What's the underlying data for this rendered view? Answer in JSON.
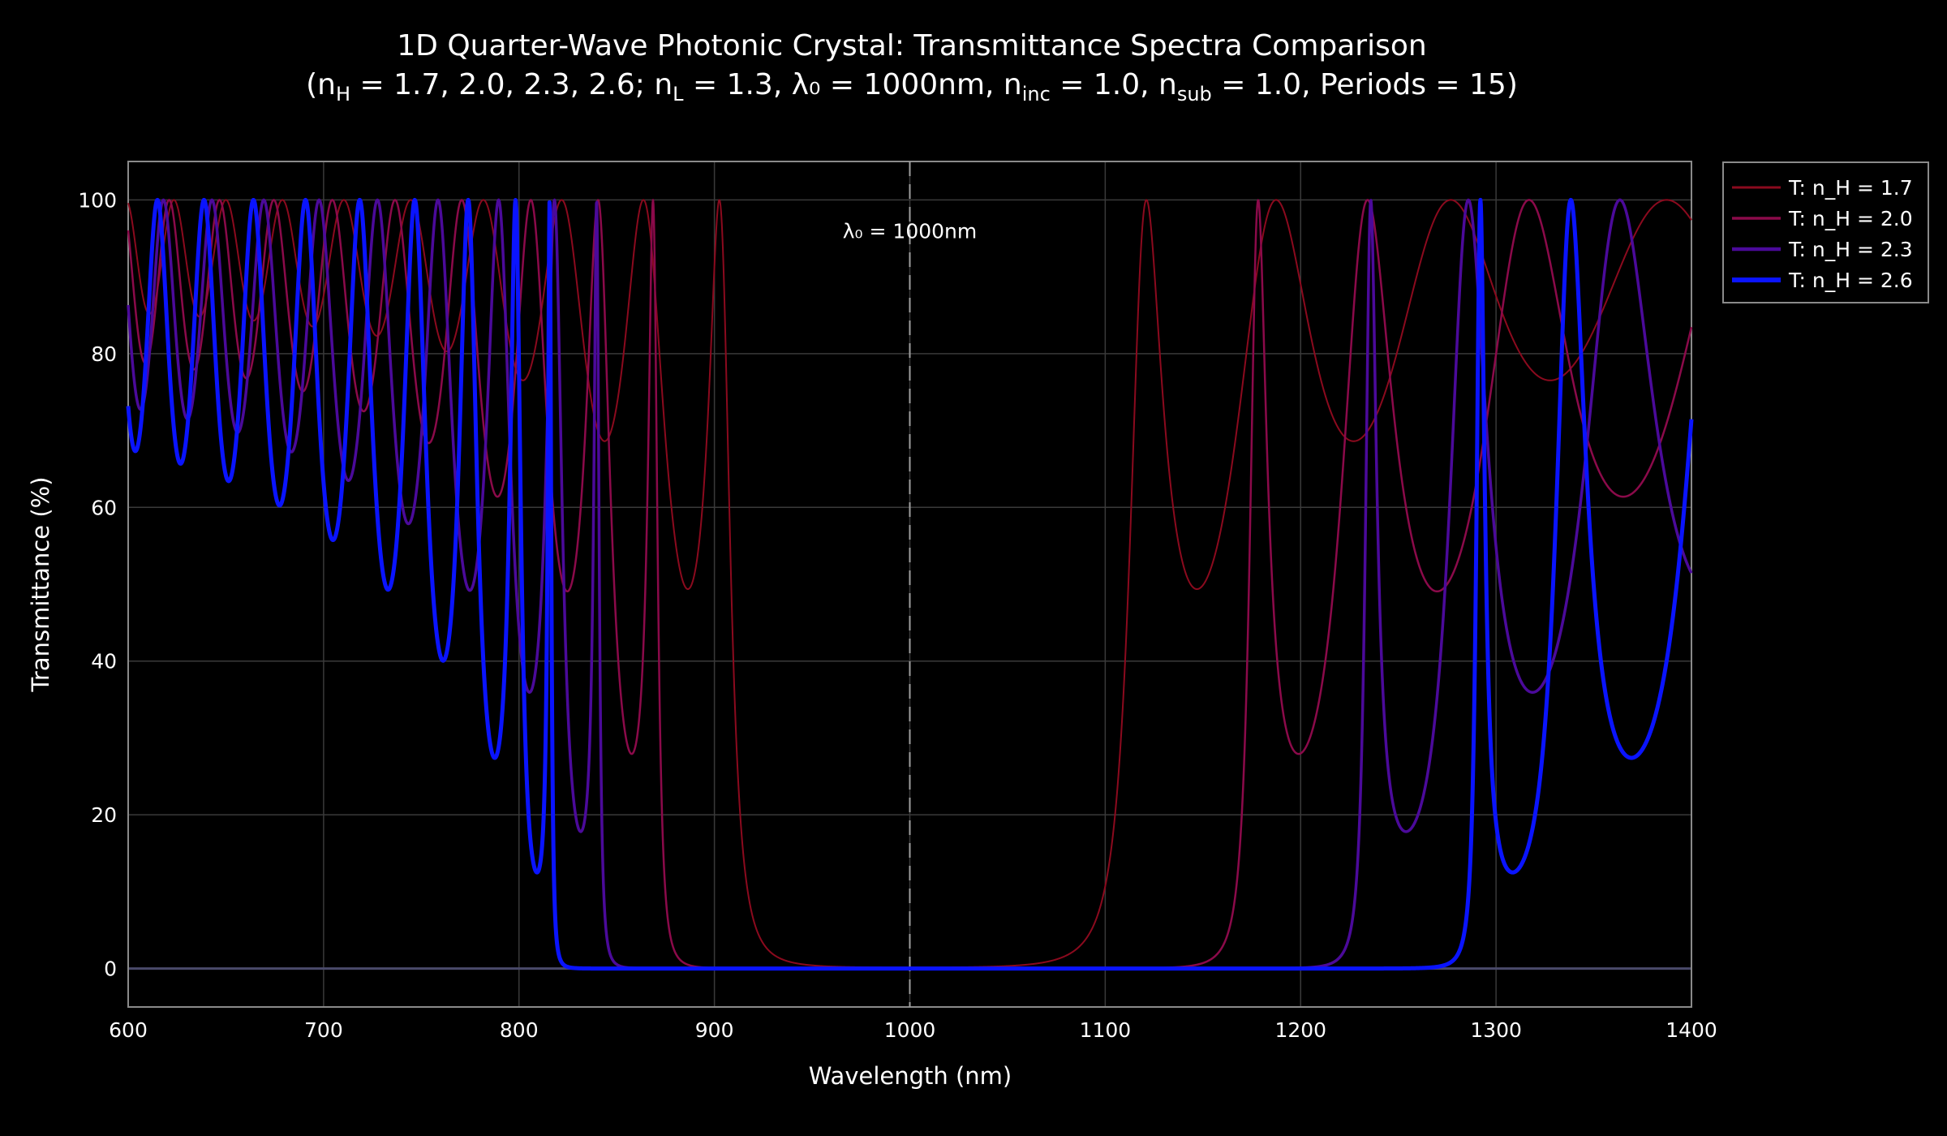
{
  "chart_data": {
    "type": "line",
    "title": "1D Quarter-Wave Photonic Crystal: Transmittance Spectra Comparison",
    "subtitle_parts": [
      {
        "t": "(n",
        "s": ""
      },
      {
        "t": "H",
        "s": "sub"
      },
      {
        "t": " = 1.7, 2.0, 2.3, 2.6; n",
        "s": ""
      },
      {
        "t": "L",
        "s": "sub"
      },
      {
        "t": " = 1.3, λ₀ = 1000nm, n",
        "s": ""
      },
      {
        "t": "inc",
        "s": "sub"
      },
      {
        "t": " = 1.0, n",
        "s": ""
      },
      {
        "t": "sub",
        "s": "sub"
      },
      {
        "t": " = 1.0, Periods = 15)",
        "s": ""
      }
    ],
    "xlabel": "Wavelength (nm)",
    "ylabel": "Transmittance (%)",
    "xlim": [
      600,
      1400
    ],
    "ylim": [
      -5,
      105
    ],
    "xticks": [
      600,
      700,
      800,
      900,
      1000,
      1100,
      1200,
      1300,
      1400
    ],
    "yticks": [
      0,
      20,
      40,
      60,
      80,
      100
    ],
    "grid": true,
    "legend_position": "top-right outside",
    "annotation": {
      "text": "λ₀ = 1000nm",
      "x": 1000
    },
    "stack": {
      "n_low": 1.3,
      "lambda0_nm": 1000,
      "n_incident": 1.0,
      "n_substrate": 1.0,
      "periods": 15
    },
    "series": [
      {
        "name": "T: n_H = 1.7",
        "n_high": 1.7,
        "color": "#8b0a1e"
      },
      {
        "name": "T: n_H = 2.0",
        "n_high": 2.0,
        "color": "#8b0a4a"
      },
      {
        "name": "T: n_H = 2.3",
        "n_high": 2.3,
        "color": "#4b0a9a"
      },
      {
        "name": "T: n_H = 2.6",
        "n_high": 2.6,
        "color": "#0a14ff"
      }
    ]
  }
}
